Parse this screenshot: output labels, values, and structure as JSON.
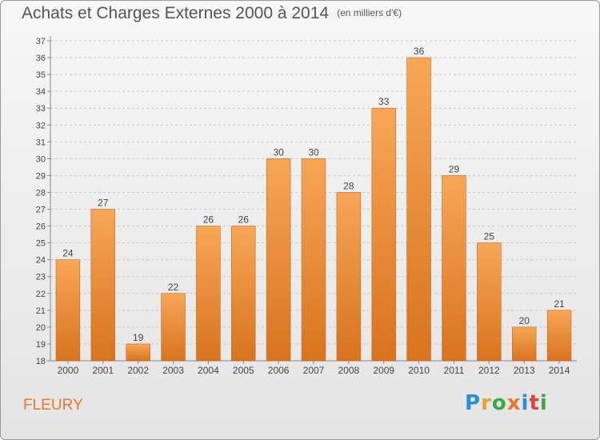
{
  "header": {
    "title": "Achats et Charges Externes 2000 à 2014",
    "subtitle": "(en milliers d'€)"
  },
  "footer": {
    "commune": "FLEURY",
    "logo_text": "Proxiti",
    "logo_colors": [
      "#2a8fd8",
      "#e8a030",
      "#3aa845",
      "#e8772a",
      "#2a8fd8",
      "#e04040",
      "#3aa845"
    ]
  },
  "colors": {
    "bar_top": "#f7a757",
    "bar_bottom": "#d9731e",
    "bar_edge": "#c96a1c",
    "grid": "#c8c8c8"
  },
  "chart_data": {
    "type": "bar",
    "title": "Achats et Charges Externes 2000 à 2014",
    "subtitle": "(en milliers d'€)",
    "categories": [
      "2000",
      "2001",
      "2002",
      "2003",
      "2004",
      "2005",
      "2006",
      "2007",
      "2008",
      "2009",
      "2010",
      "2011",
      "2012",
      "2013",
      "2014"
    ],
    "values": [
      24,
      27,
      19,
      22,
      26,
      26,
      30,
      30,
      28,
      33,
      36,
      29,
      25,
      20,
      21
    ],
    "ylim": [
      18,
      37
    ],
    "yticks": [
      18,
      19,
      20,
      21,
      22,
      23,
      24,
      25,
      26,
      27,
      28,
      29,
      30,
      31,
      32,
      33,
      34,
      35,
      36,
      37
    ],
    "grid": true,
    "data_labels": true,
    "xlabel": "",
    "ylabel": ""
  }
}
